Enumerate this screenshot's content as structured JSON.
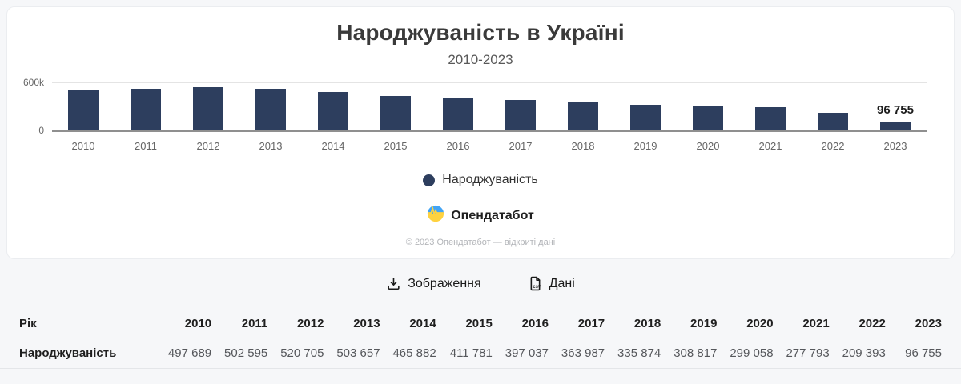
{
  "chart_card": {
    "title": "Народжуваність в Україні",
    "subtitle": "2010-2023",
    "legend": {
      "label": "Народжуваність",
      "color": "#2d3e5e"
    },
    "brand": {
      "name": "Опендатабот"
    },
    "copyright": "© 2023 Опендатабот — відкриті дані"
  },
  "chart_data": {
    "type": "bar",
    "title": "Народжуваність в Україні",
    "subtitle": "2010-2023",
    "categories": [
      "2010",
      "2011",
      "2012",
      "2013",
      "2014",
      "2015",
      "2016",
      "2017",
      "2018",
      "2019",
      "2020",
      "2021",
      "2022",
      "2023"
    ],
    "series": [
      {
        "name": "Народжуваність",
        "values": [
          497689,
          502595,
          520705,
          503657,
          465882,
          411781,
          397037,
          363987,
          335874,
          308817,
          299058,
          277793,
          209393,
          96755
        ]
      }
    ],
    "bar_color": "#2d3e5e",
    "ylim": [
      0,
      600000
    ],
    "ytick_labels": [
      "600k",
      "0"
    ],
    "grid": "top gridline only",
    "legend_position": "bottom-center",
    "point_labels": {
      "last_only": true,
      "last_label": "96 755"
    }
  },
  "actions": {
    "image_button": "Зображення",
    "data_button": "Дані",
    "csv_icon_text": "csv"
  },
  "table": {
    "header": [
      "Рік",
      "2010",
      "2011",
      "2012",
      "2013",
      "2014",
      "2015",
      "2016",
      "2017",
      "2018",
      "2019",
      "2020",
      "2021",
      "2022",
      "2023"
    ],
    "rows": [
      {
        "label": "Народжуваність",
        "values": [
          "497 689",
          "502 595",
          "520 705",
          "503 657",
          "465 882",
          "411 781",
          "397 037",
          "363 987",
          "335 874",
          "308 817",
          "299 058",
          "277 793",
          "209 393",
          "96 755"
        ]
      }
    ]
  }
}
